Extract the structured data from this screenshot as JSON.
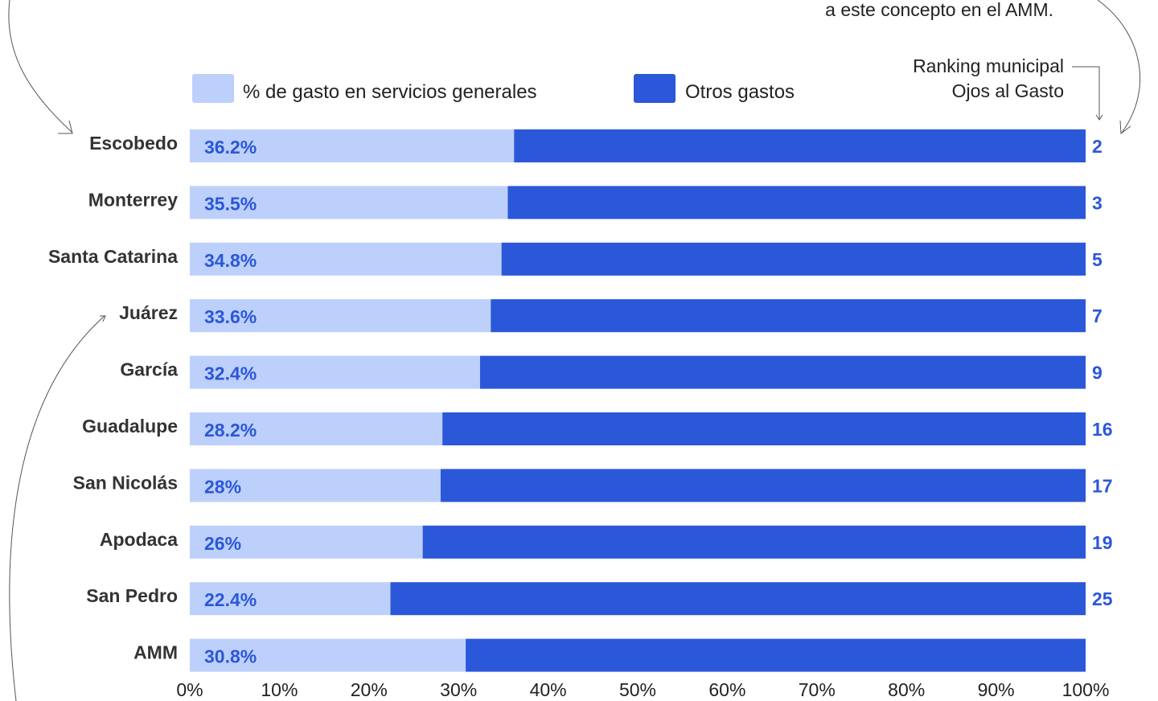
{
  "chart_data": {
    "type": "bar",
    "stacked": true,
    "orientation": "horizontal",
    "categories": [
      "Escobedo",
      "Monterrey",
      "Santa Catarina",
      "Juárez",
      "García",
      "Guadalupe",
      "San Nicolás",
      "Apodaca",
      "San Pedro",
      "AMM"
    ],
    "series": [
      {
        "name": "% de gasto en servicios generales",
        "values": [
          36.2,
          35.5,
          34.8,
          33.6,
          32.4,
          28.2,
          28,
          26,
          22.4,
          30.8
        ],
        "labels": [
          "36.2%",
          "35.5%",
          "34.8%",
          "33.6%",
          "32.4%",
          "28.2%",
          "28%",
          "26%",
          "22.4%",
          "30.8%"
        ]
      },
      {
        "name": "Otros gastos",
        "values": [
          63.8,
          64.5,
          65.2,
          66.4,
          67.6,
          71.8,
          72,
          74,
          77.6,
          69.2
        ]
      }
    ],
    "rankings": [
      "2",
      "3",
      "5",
      "7",
      "9",
      "16",
      "17",
      "19",
      "25",
      ""
    ],
    "ranking_header": [
      "Ranking municipal",
      "Ojos al Gasto"
    ],
    "xlim": [
      0,
      100
    ],
    "x_ticks": [
      "0%",
      "10%",
      "20%",
      "30%",
      "40%",
      "50%",
      "60%",
      "70%",
      "80%",
      "90%",
      "100%"
    ],
    "legend_position": "top",
    "colors": {
      "servicios": "#bdd0fb",
      "otros": "#2b57d9",
      "value_text": "#2b57d9",
      "rank_text": "#2b57d9"
    }
  },
  "annotation": {
    "note_partial": "a este concepto en el AMM."
  }
}
